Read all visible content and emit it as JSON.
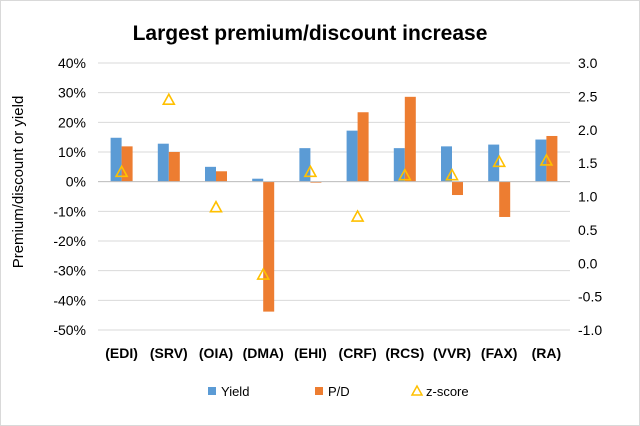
{
  "chart_data": {
    "type": "bar",
    "title": "Largest premium/discount increase",
    "ylabel": "Premium/discount or yield",
    "categories": [
      "(EDI)",
      "(SRV)",
      "(OIA)",
      "(DMA)",
      "(EHI)",
      "(CRF)",
      "(RCS)",
      "(VVR)",
      "(FAX)",
      "(RA)"
    ],
    "series": [
      {
        "name": "Yield",
        "type": "bar",
        "axis": "left",
        "color": "#5b9bd5",
        "values": [
          14.8,
          12.8,
          5.0,
          1.0,
          11.3,
          17.2,
          11.3,
          11.9,
          12.5,
          14.2
        ]
      },
      {
        "name": "P/D",
        "type": "bar",
        "axis": "left",
        "color": "#ed7d31",
        "values": [
          11.9,
          10.0,
          3.5,
          -43.8,
          -0.3,
          23.4,
          28.6,
          -4.5,
          -11.9,
          15.4
        ]
      },
      {
        "name": "z-score",
        "type": "scatter",
        "axis": "right",
        "color": "#ffc000",
        "marker": "triangle-open",
        "values": [
          1.37,
          2.45,
          0.84,
          -0.17,
          1.37,
          0.7,
          1.32,
          1.32,
          1.52,
          1.54
        ]
      }
    ],
    "ylim_left": [
      -50,
      40
    ],
    "yticks_left": [
      "40%",
      "30%",
      "20%",
      "10%",
      "0%",
      "-10%",
      "-20%",
      "-30%",
      "-40%",
      "-50%"
    ],
    "ylim_right": [
      -1.0,
      3.0
    ],
    "yticks_right": [
      "3.0",
      "2.5",
      "2.0",
      "1.5",
      "1.0",
      "0.5",
      "0.0",
      "-0.5",
      "-1.0"
    ],
    "grid": true,
    "legend_position": "bottom"
  }
}
